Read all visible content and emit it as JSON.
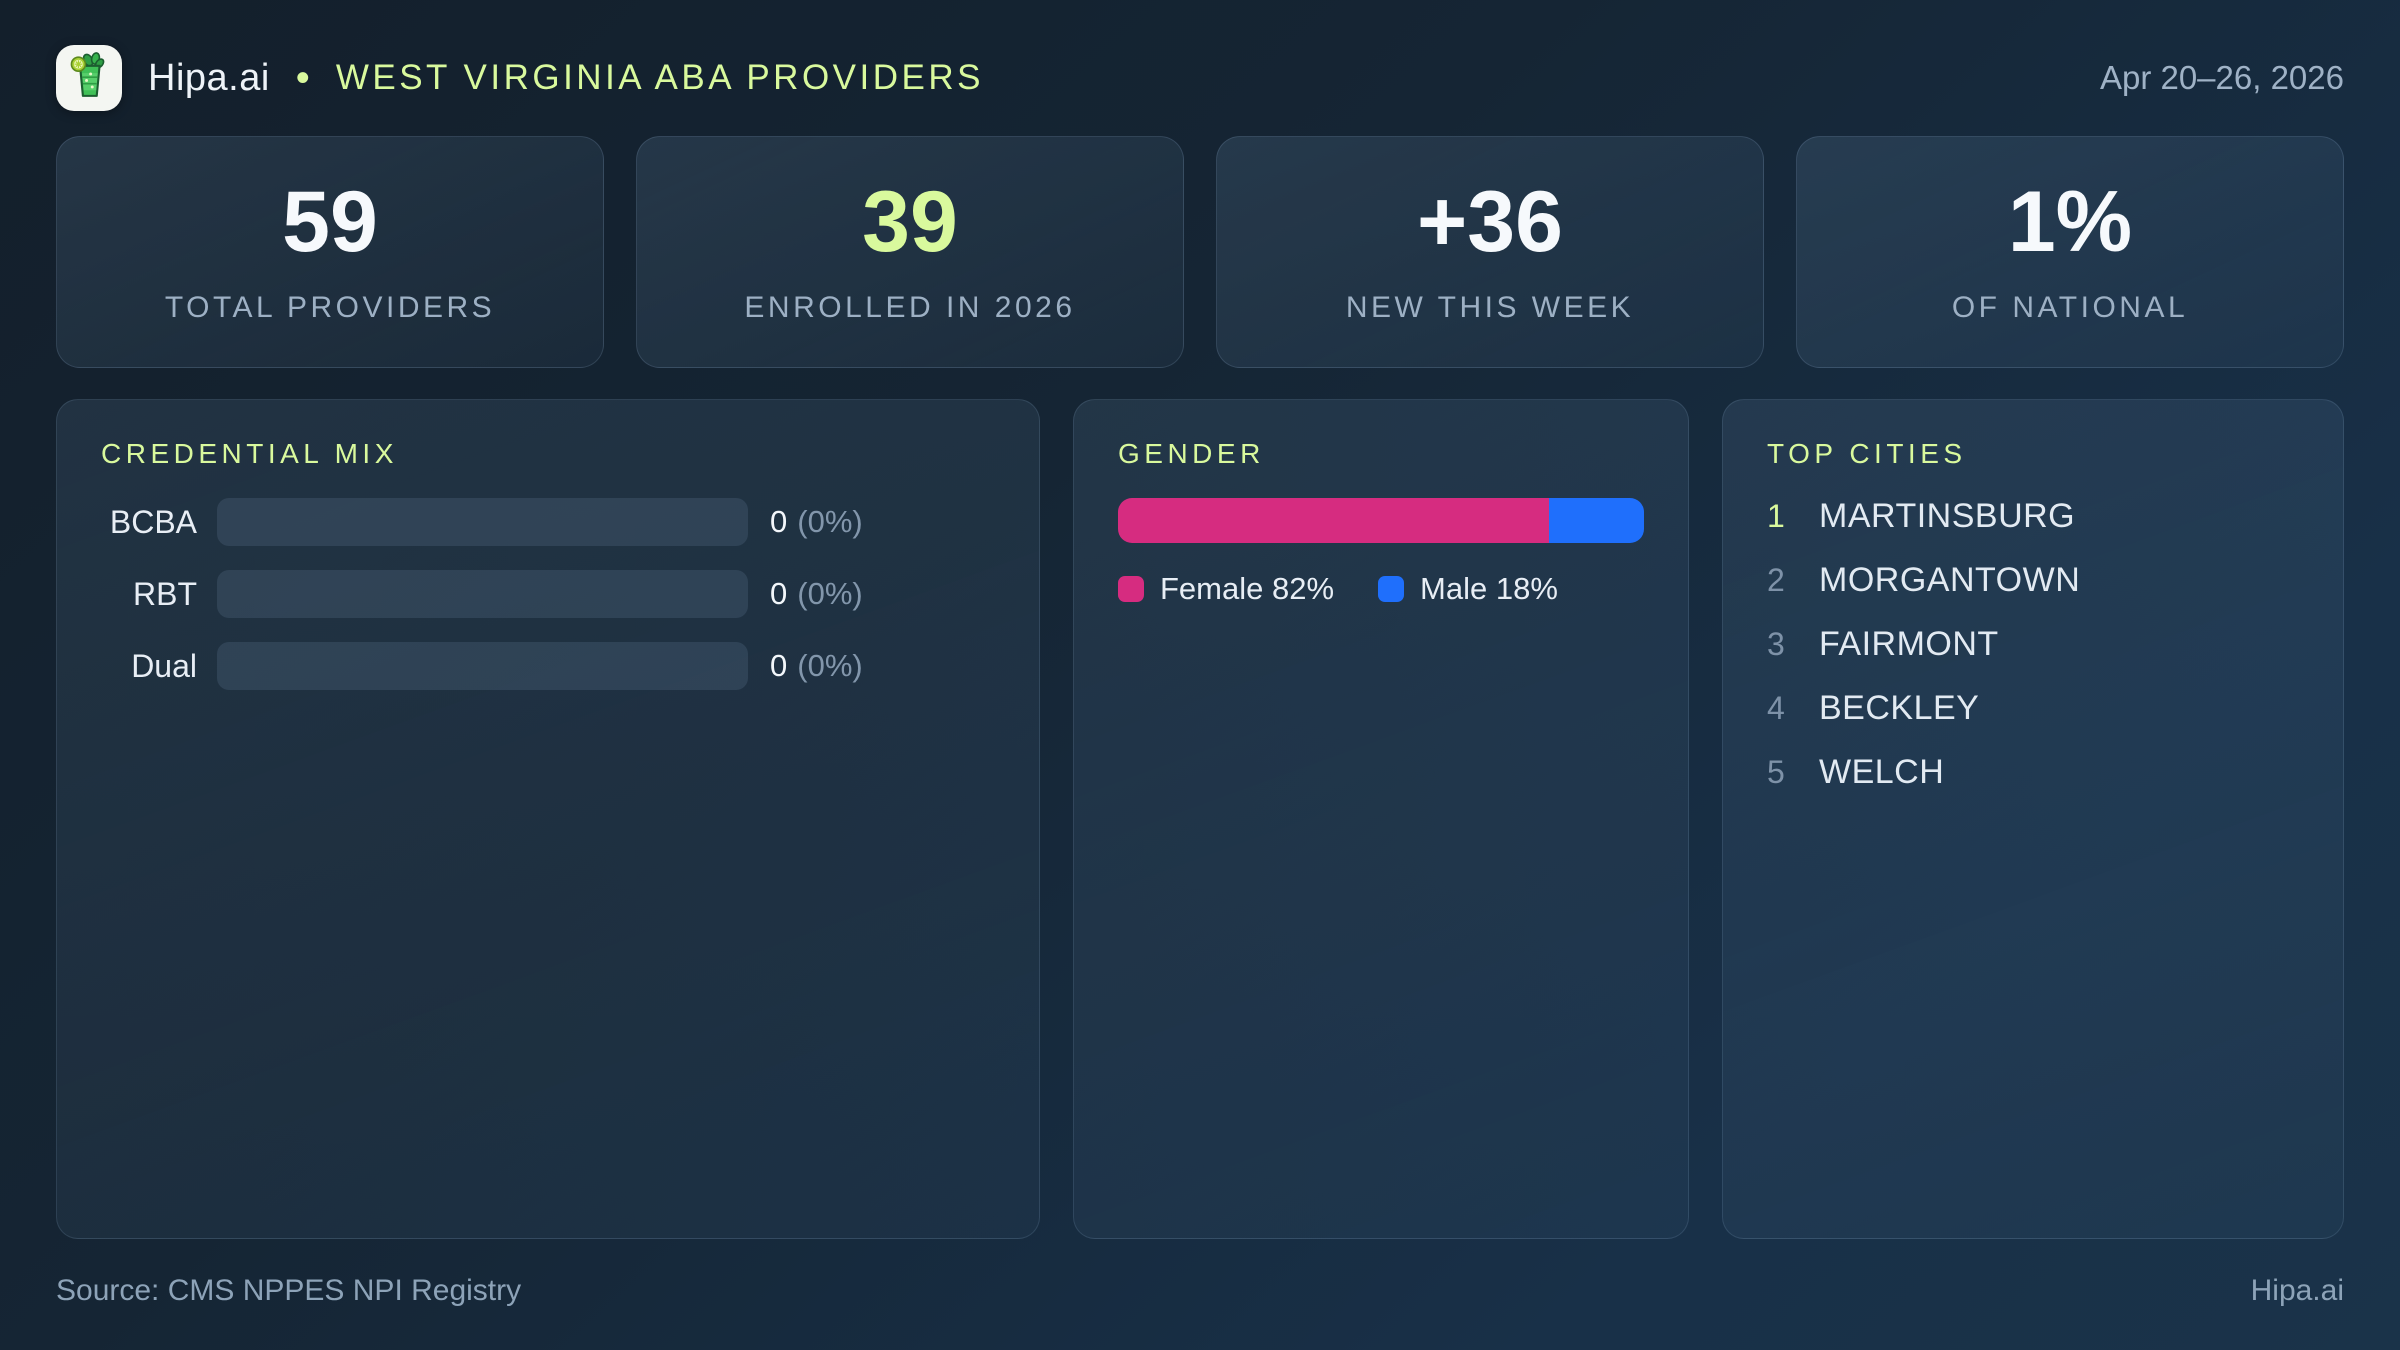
{
  "colors": {
    "accent_green": "#d9f99d",
    "female_pink": "#d62c80",
    "male_blue": "#1f6ffc"
  },
  "header": {
    "brand": "Hipa.ai",
    "separator": "•",
    "title": "WEST VIRGINIA ABA PROVIDERS",
    "date_range": "Apr 20–26, 2026",
    "logo_icon": "mojito-drink-icon"
  },
  "stats": [
    {
      "value": "59",
      "label": "TOTAL PROVIDERS"
    },
    {
      "value": "39",
      "label": "ENROLLED IN 2026"
    },
    {
      "value": "+36",
      "label": "NEW THIS WEEK"
    },
    {
      "value": "1%",
      "label": "OF NATIONAL"
    }
  ],
  "credential_mix": {
    "title": "CREDENTIAL MIX",
    "rows": [
      {
        "label": "BCBA",
        "value": "0",
        "pct_text": "(0%)",
        "pct": 0
      },
      {
        "label": "RBT",
        "value": "0",
        "pct_text": "(0%)",
        "pct": 0
      },
      {
        "label": "Dual",
        "value": "0",
        "pct_text": "(0%)",
        "pct": 0
      }
    ]
  },
  "gender": {
    "title": "GENDER",
    "female_pct": 82,
    "male_pct": 18,
    "legend": [
      {
        "label": "Female 82%",
        "series": "female"
      },
      {
        "label": "Male 18%",
        "series": "male"
      }
    ]
  },
  "top_cities": {
    "title": "TOP CITIES",
    "items": [
      {
        "rank": "1",
        "city": "MARTINSBURG"
      },
      {
        "rank": "2",
        "city": "MORGANTOWN"
      },
      {
        "rank": "3",
        "city": "FAIRMONT"
      },
      {
        "rank": "4",
        "city": "BECKLEY"
      },
      {
        "rank": "5",
        "city": "WELCH"
      }
    ]
  },
  "footer": {
    "source": "Source: CMS NPPES NPI Registry",
    "brand": "Hipa.ai"
  },
  "chart_data": [
    {
      "type": "bar",
      "orientation": "horizontal",
      "title": "CREDENTIAL MIX",
      "categories": [
        "BCBA",
        "RBT",
        "Dual"
      ],
      "values": [
        0,
        0,
        0
      ],
      "value_labels": [
        "0 (0%)",
        "0 (0%)",
        "0 (0%)"
      ],
      "xlim": [
        0,
        100
      ],
      "grid": false,
      "legend_position": "none"
    },
    {
      "type": "bar",
      "orientation": "horizontal-stacked",
      "title": "GENDER",
      "series": [
        {
          "name": "Female",
          "values": [
            82
          ],
          "color": "#d62c80"
        },
        {
          "name": "Male",
          "values": [
            18
          ],
          "color": "#1f6ffc"
        }
      ],
      "legend_entries": [
        "Female 82%",
        "Male 18%"
      ],
      "legend_position": "bottom",
      "xlim": [
        0,
        100
      ]
    },
    {
      "type": "table",
      "title": "TOP CITIES",
      "columns": [
        "rank",
        "city"
      ],
      "rows": [
        [
          "1",
          "MARTINSBURG"
        ],
        [
          "2",
          "MORGANTOWN"
        ],
        [
          "3",
          "FAIRMONT"
        ],
        [
          "4",
          "BECKLEY"
        ],
        [
          "5",
          "WELCH"
        ]
      ]
    }
  ]
}
